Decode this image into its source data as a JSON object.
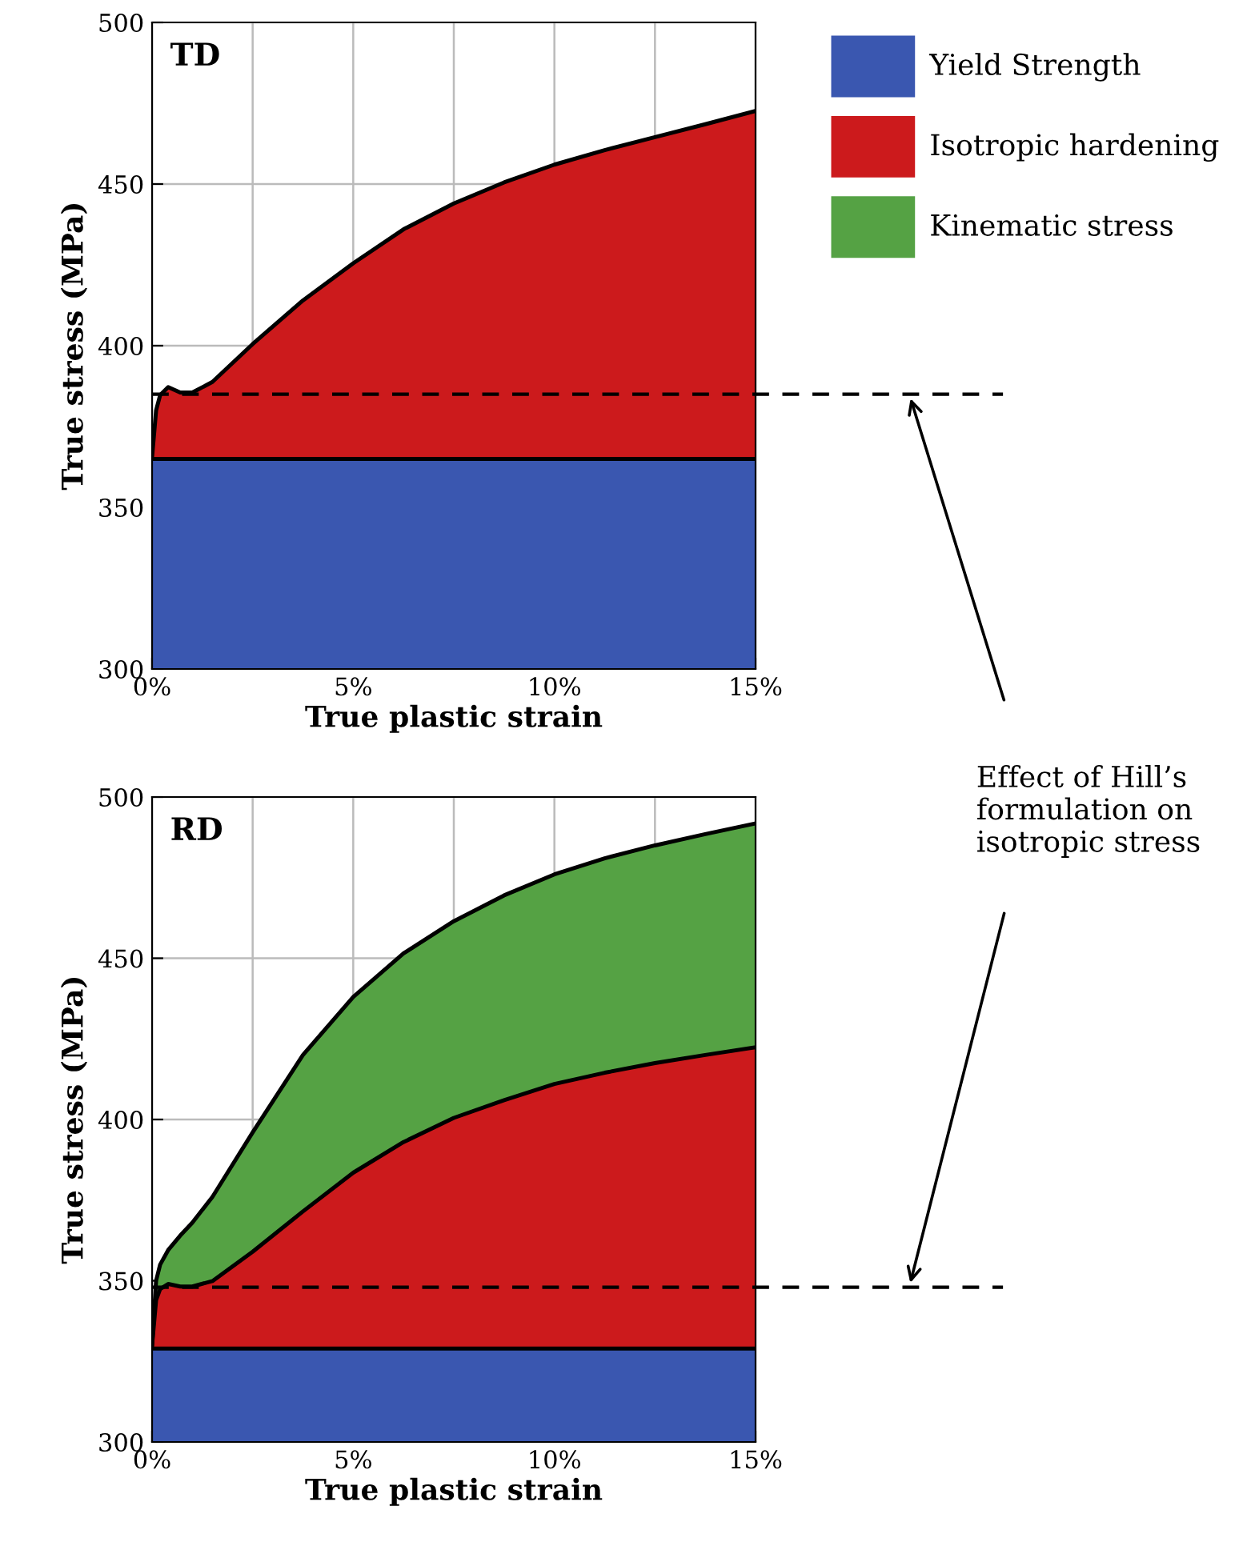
{
  "chart_data": [
    {
      "type": "area",
      "title": "TD",
      "xlabel": "True plastic strain",
      "ylabel": "True stress (MPa)",
      "x": [
        0,
        0.1,
        0.2,
        0.4,
        0.7,
        1.0,
        1.5,
        2.5,
        3.75,
        5,
        6.25,
        7.5,
        8.75,
        10,
        11.25,
        12.5,
        13.75,
        15
      ],
      "series": [
        {
          "name": "Yield Strength",
          "color": "#3a57b0",
          "values": [
            365,
            365,
            365,
            365,
            365,
            365,
            365,
            365,
            365,
            365,
            365,
            365,
            365,
            365,
            365,
            365,
            365,
            365
          ]
        },
        {
          "name": "Isotropic hardening",
          "color": "#cc1a1c",
          "values": [
            365.5,
            380,
            384.7,
            387.2,
            385.5,
            385.5,
            388.8,
            400.5,
            414,
            425.5,
            436,
            444,
            450.5,
            456,
            460.5,
            464.5,
            468.5,
            472.6
          ]
        }
      ],
      "xlim": [
        0,
        15
      ],
      "ylim": [
        300,
        500
      ],
      "xticks": [
        {
          "value": 0,
          "label": "0%"
        },
        {
          "value": 2.5,
          "label": null
        },
        {
          "value": 5,
          "label": "5%"
        },
        {
          "value": 7.5,
          "label": null
        },
        {
          "value": 10,
          "label": "10%"
        },
        {
          "value": 12.5,
          "label": null
        },
        {
          "value": 15,
          "label": "15%"
        }
      ],
      "yticks": [
        300,
        350,
        400,
        450,
        500
      ],
      "grid": true,
      "legend": "right",
      "ref_lines": [
        {
          "axis": "y",
          "value": 385,
          "line_style": "dashed",
          "color": "#000000"
        }
      ],
      "annotations": [
        "Effect of Hill’s formulation on isotropic stress"
      ]
    },
    {
      "type": "area",
      "title": "RD",
      "xlabel": "True plastic strain",
      "ylabel": "True stress (MPa)",
      "x": [
        0,
        0.1,
        0.2,
        0.4,
        0.7,
        1.0,
        1.5,
        2.5,
        3.75,
        5,
        6.25,
        7.5,
        8.75,
        10,
        11.25,
        12.5,
        13.75,
        15
      ],
      "series": [
        {
          "name": "Yield Strength",
          "color": "#3a57b0",
          "values": [
            329,
            329,
            329,
            329,
            329,
            329,
            329,
            329,
            329,
            329,
            329,
            329,
            329,
            329,
            329,
            329,
            329,
            329
          ]
        },
        {
          "name": "Isotropic hardening",
          "color": "#cc1a1c",
          "values": [
            330,
            344,
            347.4,
            349,
            348.2,
            348.2,
            349.9,
            359,
            371.5,
            383.5,
            393,
            400.5,
            406,
            411,
            414.5,
            417.5,
            420,
            422.4
          ]
        },
        {
          "name": "Kinematic stress",
          "color": "#55a244",
          "values": [
            330,
            350,
            355,
            359.5,
            364,
            368,
            376,
            396,
            420,
            438,
            451.5,
            461.5,
            469.5,
            476,
            481,
            485,
            488.5,
            491.8
          ]
        }
      ],
      "xlim": [
        0,
        15
      ],
      "ylim": [
        300,
        500
      ],
      "xticks": [
        {
          "value": 0,
          "label": "0%"
        },
        {
          "value": 2.5,
          "label": null
        },
        {
          "value": 5,
          "label": "5%"
        },
        {
          "value": 7.5,
          "label": null
        },
        {
          "value": 10,
          "label": "10%"
        },
        {
          "value": 12.5,
          "label": null
        },
        {
          "value": 15,
          "label": "15%"
        }
      ],
      "yticks": [
        300,
        350,
        400,
        450,
        500
      ],
      "grid": true,
      "ref_lines": [
        {
          "axis": "y",
          "value": 348,
          "line_style": "dashed",
          "color": "#000000"
        }
      ]
    }
  ]
}
